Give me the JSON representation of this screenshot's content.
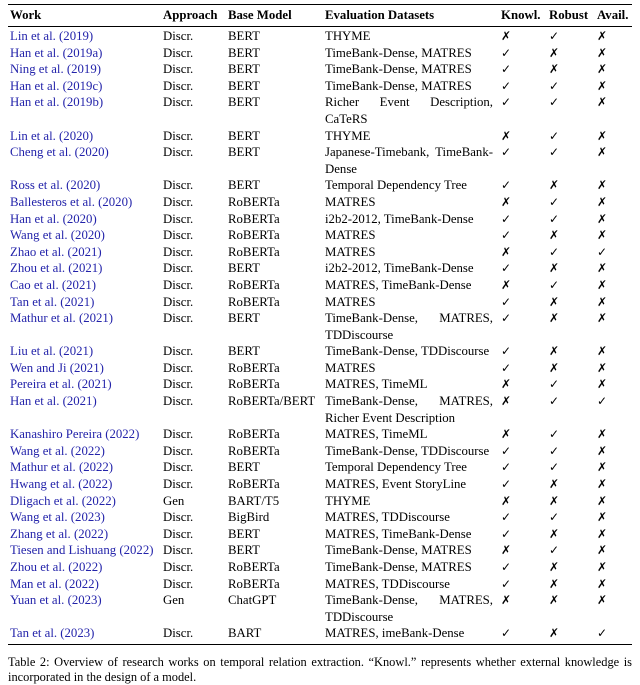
{
  "colors": {
    "link_blue": "#2323aa",
    "text": "#000000",
    "rule": "#000000",
    "background": "#ffffff"
  },
  "icons": {
    "check": "✓",
    "cross": "✗"
  },
  "caption": "Table 2: Overview of research works on temporal relation extraction. “Knowl.” represents whether external knowledge is incorporated in the design of a model.",
  "table": {
    "columns": [
      {
        "key": "work",
        "label": "Work"
      },
      {
        "key": "approach",
        "label": "Approach"
      },
      {
        "key": "base_model",
        "label": "Base Model"
      },
      {
        "key": "datasets",
        "label": "Evaluation Datasets"
      },
      {
        "key": "knowl",
        "label": "Knowl."
      },
      {
        "key": "robust",
        "label": "Robust"
      },
      {
        "key": "avail",
        "label": "Avail."
      }
    ],
    "rows": [
      {
        "work": "Lin et al. (2019)",
        "approach": "Discr.",
        "base_model": "BERT",
        "dataset_lines": [
          "THYME"
        ],
        "knowl": "cross",
        "robust": "check",
        "avail": "cross"
      },
      {
        "work": "Han et al. (2019a)",
        "approach": "Discr.",
        "base_model": "BERT",
        "dataset_lines": [
          "TimeBank-Dense, MATRES"
        ],
        "knowl": "check",
        "robust": "cross",
        "avail": "cross"
      },
      {
        "work": "Ning et al. (2019)",
        "approach": "Discr.",
        "base_model": "BERT",
        "dataset_lines": [
          "TimeBank-Dense, MATRES"
        ],
        "knowl": "check",
        "robust": "cross",
        "avail": "cross"
      },
      {
        "work": "Han et al. (2019c)",
        "approach": "Discr.",
        "base_model": "BERT",
        "dataset_lines": [
          "TimeBank-Dense, MATRES"
        ],
        "knowl": "check",
        "robust": "check",
        "avail": "cross"
      },
      {
        "work": "Han et al. (2019b)",
        "approach": "Discr.",
        "base_model": "BERT",
        "dataset_lines": [
          "Richer Event Description,",
          "CaTeRS"
        ],
        "knowl": "check",
        "robust": "check",
        "avail": "cross"
      },
      {
        "work": "Lin et al. (2020)",
        "approach": "Discr.",
        "base_model": "BERT",
        "dataset_lines": [
          "THYME"
        ],
        "knowl": "cross",
        "robust": "check",
        "avail": "cross"
      },
      {
        "work": "Cheng et al. (2020)",
        "approach": "Discr.",
        "base_model": "BERT",
        "dataset_lines": [
          "Japanese-Timebank, TimeBank-",
          "Dense"
        ],
        "knowl": "check",
        "robust": "check",
        "avail": "cross"
      },
      {
        "work": "Ross et al. (2020)",
        "approach": "Discr.",
        "base_model": "BERT",
        "dataset_lines": [
          "Temporal Dependency Tree"
        ],
        "knowl": "check",
        "robust": "cross",
        "avail": "cross"
      },
      {
        "work": "Ballesteros et al. (2020)",
        "approach": "Discr.",
        "base_model": "RoBERTa",
        "dataset_lines": [
          "MATRES"
        ],
        "knowl": "cross",
        "robust": "check",
        "avail": "cross"
      },
      {
        "work": "Han et al. (2020)",
        "approach": "Discr.",
        "base_model": "RoBERTa",
        "dataset_lines": [
          "i2b2-2012, TimeBank-Dense"
        ],
        "knowl": "check",
        "robust": "check",
        "avail": "cross"
      },
      {
        "work": "Wang et al. (2020)",
        "approach": "Discr.",
        "base_model": "RoBERTa",
        "dataset_lines": [
          "MATRES"
        ],
        "knowl": "check",
        "robust": "cross",
        "avail": "cross"
      },
      {
        "work": "Zhao et al. (2021)",
        "approach": "Discr.",
        "base_model": "RoBERTa",
        "dataset_lines": [
          "MATRES"
        ],
        "knowl": "cross",
        "robust": "check",
        "avail": "check"
      },
      {
        "work": "Zhou et al. (2021)",
        "approach": "Discr.",
        "base_model": "BERT",
        "dataset_lines": [
          "i2b2-2012, TimeBank-Dense"
        ],
        "knowl": "check",
        "robust": "cross",
        "avail": "cross"
      },
      {
        "work": "Cao et al. (2021)",
        "approach": "Discr.",
        "base_model": "RoBERTa",
        "dataset_lines": [
          "MATRES, TimeBank-Dense"
        ],
        "knowl": "cross",
        "robust": "check",
        "avail": "cross"
      },
      {
        "work": "Tan et al. (2021)",
        "approach": "Discr.",
        "base_model": "RoBERTa",
        "dataset_lines": [
          "MATRES"
        ],
        "knowl": "check",
        "robust": "cross",
        "avail": "cross"
      },
      {
        "work": "Mathur et al. (2021)",
        "approach": "Discr.",
        "base_model": "BERT",
        "dataset_lines": [
          "TimeBank-Dense, MATRES,",
          "TDDiscourse"
        ],
        "knowl": "check",
        "robust": "cross",
        "avail": "cross"
      },
      {
        "work": "Liu et al. (2021)",
        "approach": "Discr.",
        "base_model": "BERT",
        "dataset_lines": [
          "TimeBank-Dense, TDDiscourse"
        ],
        "knowl": "check",
        "robust": "cross",
        "avail": "cross"
      },
      {
        "work": "Wen and Ji (2021)",
        "approach": "Discr.",
        "base_model": "RoBERTa",
        "dataset_lines": [
          "MATRES"
        ],
        "knowl": "check",
        "robust": "cross",
        "avail": "cross"
      },
      {
        "work": "Pereira et al. (2021)",
        "approach": "Discr.",
        "base_model": "RoBERTa",
        "dataset_lines": [
          "MATRES, TimeML"
        ],
        "knowl": "cross",
        "robust": "check",
        "avail": "cross"
      },
      {
        "work": "Han et al. (2021)",
        "approach": "Discr.",
        "base_model": "RoBERTa/BERT",
        "dataset_lines": [
          "TimeBank-Dense, MATRES,",
          "Richer Event Description"
        ],
        "knowl": "cross",
        "robust": "check",
        "avail": "check"
      },
      {
        "work": "Kanashiro Pereira (2022)",
        "approach": "Discr.",
        "base_model": "RoBERTa",
        "dataset_lines": [
          "MATRES, TimeML"
        ],
        "knowl": "cross",
        "robust": "check",
        "avail": "cross"
      },
      {
        "work": "Wang et al. (2022)",
        "approach": "Discr.",
        "base_model": "RoBERTa",
        "dataset_lines": [
          "TimeBank-Dense, TDDiscourse"
        ],
        "knowl": "check",
        "robust": "check",
        "avail": "cross"
      },
      {
        "work": "Mathur et al. (2022)",
        "approach": "Discr.",
        "base_model": "BERT",
        "dataset_lines": [
          "Temporal Dependency Tree"
        ],
        "knowl": "check",
        "robust": "check",
        "avail": "cross"
      },
      {
        "work": "Hwang et al. (2022)",
        "approach": "Discr.",
        "base_model": "RoBERTa",
        "dataset_lines": [
          "MATRES, Event StoryLine"
        ],
        "knowl": "check",
        "robust": "cross",
        "avail": "cross"
      },
      {
        "work": "Dligach et al. (2022)",
        "approach": "Gen",
        "base_model": "BART/T5",
        "dataset_lines": [
          "THYME"
        ],
        "knowl": "cross",
        "robust": "cross",
        "avail": "cross"
      },
      {
        "work": "Wang et al. (2023)",
        "approach": "Discr.",
        "base_model": "BigBird",
        "dataset_lines": [
          "MATRES, TDDiscourse"
        ],
        "knowl": "check",
        "robust": "check",
        "avail": "cross"
      },
      {
        "work": "Zhang et al. (2022)",
        "approach": "Discr.",
        "base_model": "BERT",
        "dataset_lines": [
          "MATRES, TimeBank-Dense"
        ],
        "knowl": "check",
        "robust": "cross",
        "avail": "cross"
      },
      {
        "work": "Tiesen and Lishuang (2022)",
        "approach": "Discr.",
        "base_model": "BERT",
        "dataset_lines": [
          "TimeBank-Dense, MATRES"
        ],
        "knowl": "cross",
        "robust": "check",
        "avail": "cross"
      },
      {
        "work": "Zhou et al. (2022)",
        "approach": "Discr.",
        "base_model": "RoBERTa",
        "dataset_lines": [
          "TimeBank-Dense, MATRES"
        ],
        "knowl": "check",
        "robust": "cross",
        "avail": "cross"
      },
      {
        "work": "Man et al. (2022)",
        "approach": "Discr.",
        "base_model": "RoBERTa",
        "dataset_lines": [
          "MATRES, TDDiscourse"
        ],
        "knowl": "check",
        "robust": "cross",
        "avail": "cross"
      },
      {
        "work": "Yuan et al. (2023)",
        "approach": "Gen",
        "base_model": "ChatGPT",
        "dataset_lines": [
          "TimeBank-Dense, MATRES,",
          "TDDiscourse"
        ],
        "knowl": "cross",
        "robust": "cross",
        "avail": "cross"
      },
      {
        "work": "Tan et al. (2023)",
        "approach": "Discr.",
        "base_model": "BART",
        "dataset_lines": [
          "MATRES, imeBank-Dense"
        ],
        "knowl": "check",
        "robust": "cross",
        "avail": "check"
      }
    ]
  }
}
